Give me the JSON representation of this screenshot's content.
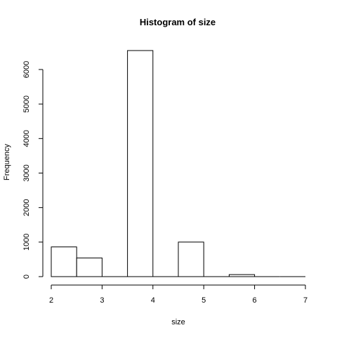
{
  "chart_data": {
    "type": "bar",
    "title": "Histogram of size",
    "xlabel": "size",
    "ylabel": "Frequency",
    "bins": [
      {
        "start": 2.0,
        "end": 2.5,
        "count": 860
      },
      {
        "start": 2.5,
        "end": 3.0,
        "count": 540
      },
      {
        "start": 3.0,
        "end": 3.5,
        "count": 0
      },
      {
        "start": 3.5,
        "end": 4.0,
        "count": 6550
      },
      {
        "start": 4.0,
        "end": 4.5,
        "count": 0
      },
      {
        "start": 4.5,
        "end": 5.0,
        "count": 1000
      },
      {
        "start": 5.0,
        "end": 5.5,
        "count": 0
      },
      {
        "start": 5.5,
        "end": 6.0,
        "count": 60
      },
      {
        "start": 6.0,
        "end": 6.5,
        "count": 0
      },
      {
        "start": 6.5,
        "end": 7.0,
        "count": 0
      }
    ],
    "xlim": [
      2,
      7
    ],
    "ylim": [
      0,
      6800
    ],
    "x_ticks": [
      "2",
      "3",
      "4",
      "5",
      "6",
      "7"
    ],
    "y_ticks": [
      "0",
      "1000",
      "2000",
      "3000",
      "4000",
      "5000",
      "6000"
    ],
    "grid": false,
    "bar_fill": "#ffffff",
    "bar_stroke": "#000000"
  }
}
